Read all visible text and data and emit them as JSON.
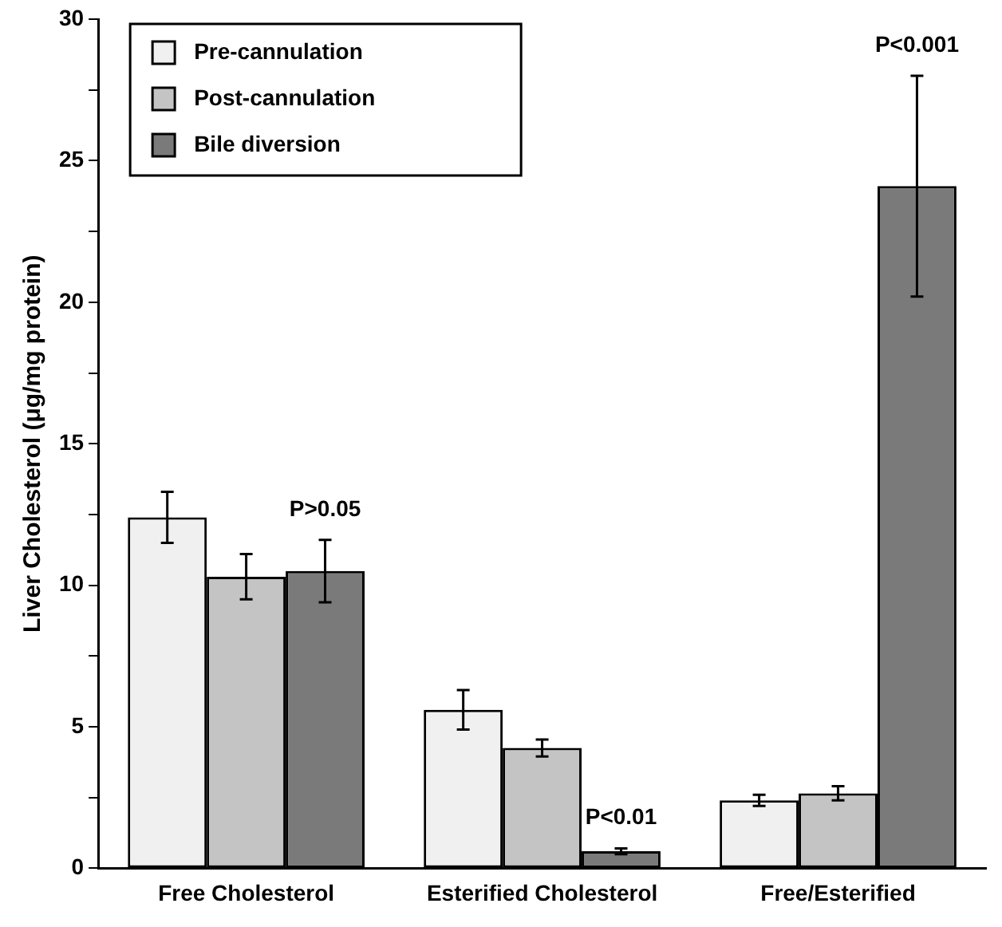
{
  "chart_data": {
    "type": "bar",
    "ylabel": "Liver Cholesterol (μg/mg protein)",
    "categories": [
      "Free Cholesterol",
      "Esterified Cholesterol",
      "Free/Esterified"
    ],
    "series": [
      {
        "name": "Pre-cannulation",
        "color": "#f0f0f0",
        "values": [
          12.4,
          5.6,
          2.4
        ],
        "errors": [
          0.9,
          0.7,
          0.2
        ]
      },
      {
        "name": "Post-cannulation",
        "color": "#c4c4c4",
        "values": [
          10.3,
          4.25,
          2.65
        ],
        "errors": [
          0.8,
          0.3,
          0.25
        ]
      },
      {
        "name": "Bile diversion",
        "color": "#7a7a7a",
        "values": [
          10.5,
          0.6,
          24.1
        ],
        "errors": [
          1.1,
          0.1,
          3.9
        ]
      }
    ],
    "ylim": [
      0,
      30
    ],
    "yticks": [
      0,
      {
        "value": 2.5,
        "label": null
      },
      5,
      {
        "value": 7.5,
        "label": null
      },
      10,
      {
        "value": 12.5,
        "label": null
      },
      15,
      {
        "value": 17.5,
        "label": null
      },
      20,
      {
        "value": 22.5,
        "label": null
      },
      25,
      {
        "value": 27.5,
        "label": null
      },
      30
    ],
    "annotations": [
      "P>0.05",
      "P<0.01",
      "P<0.001"
    ],
    "legend": "top left",
    "grid": false
  }
}
